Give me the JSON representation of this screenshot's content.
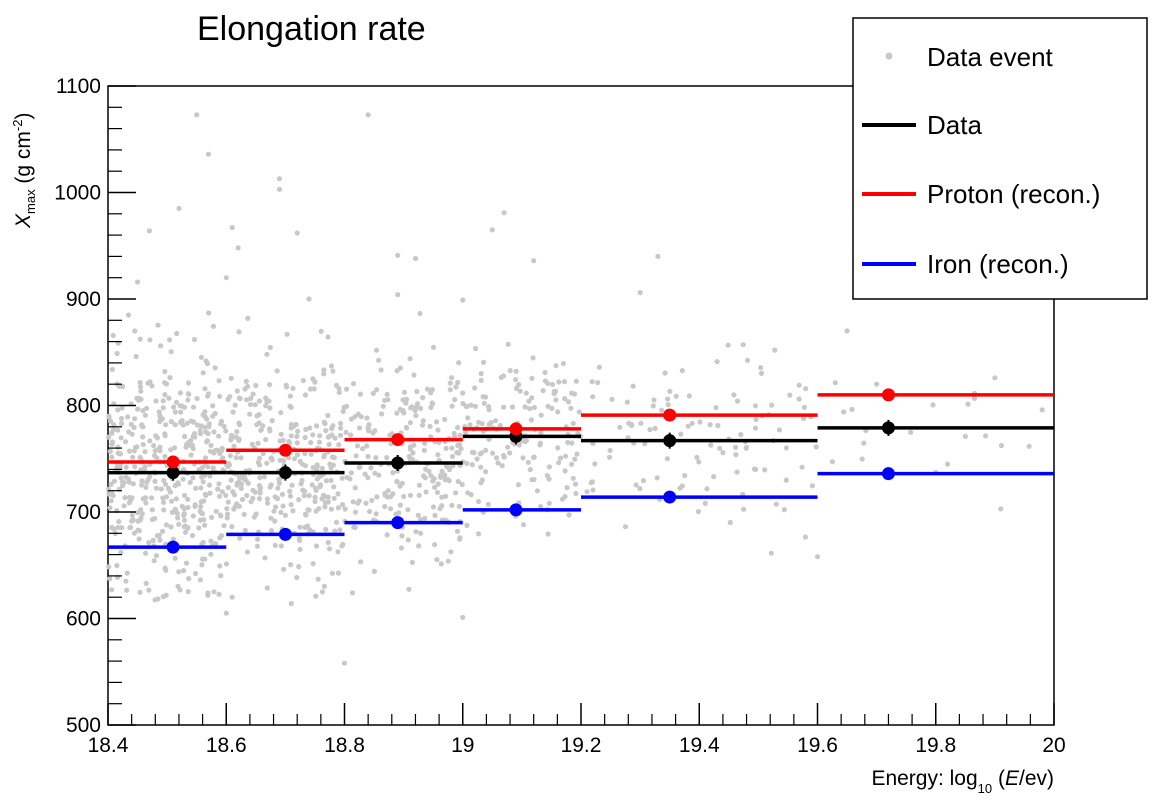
{
  "chart_data": {
    "type": "scatter",
    "title": "Elongation rate",
    "xlabel": {
      "prefix": "Energy: log",
      "sub": "10",
      "open": " (",
      "var": "E",
      "close": "/ev)"
    },
    "ylabel": {
      "var": "X",
      "sub": "max",
      "unit_prefix": " (g cm",
      "sup": "-2",
      "unit_suffix": ")"
    },
    "xlim": [
      18.4,
      20
    ],
    "ylim": [
      500,
      1100
    ],
    "x_ticks": [
      18.4,
      18.6,
      18.8,
      19,
      19.2,
      19.4,
      19.6,
      19.8,
      20
    ],
    "x_tick_labels": [
      "18.4",
      "18.6",
      "18.8",
      "19",
      "19.2",
      "19.4",
      "19.6",
      "19.8",
      "20"
    ],
    "y_ticks": [
      500,
      600,
      700,
      800,
      900,
      1000,
      1100
    ],
    "y_tick_labels": [
      "500",
      "600",
      "700",
      "800",
      "900",
      "1000",
      "1100"
    ],
    "bins": [
      {
        "x_min": 18.4,
        "x_max": 18.6,
        "x": 18.51,
        "data": 737,
        "proton": 747,
        "iron": 667
      },
      {
        "x_min": 18.6,
        "x_max": 18.8,
        "x": 18.7,
        "data": 737,
        "proton": 758,
        "iron": 679
      },
      {
        "x_min": 18.8,
        "x_max": 19.0,
        "x": 18.89,
        "data": 746,
        "proton": 768,
        "iron": 690
      },
      {
        "x_min": 19.0,
        "x_max": 19.2,
        "x": 19.09,
        "data": 771,
        "proton": 778,
        "iron": 702
      },
      {
        "x_min": 19.2,
        "x_max": 19.6,
        "x": 19.35,
        "data": 767,
        "proton": 791,
        "iron": 714
      },
      {
        "x_min": 19.6,
        "x_max": 20.0,
        "x": 19.72,
        "data": 779,
        "proton": 810,
        "iron": 736
      }
    ],
    "series": [
      {
        "name": "Data",
        "key": "data",
        "color": "#000000"
      },
      {
        "name": "Proton (recon.)",
        "key": "proton",
        "color": "#ff0000"
      },
      {
        "name": "Iron (recon.)",
        "key": "iron",
        "color": "#0000ff"
      }
    ],
    "scatter": {
      "name": "Data event",
      "color": "#c8c8c8",
      "outliers": [
        [
          18.55,
          1073
        ],
        [
          18.84,
          1073
        ],
        [
          18.57,
          1036
        ],
        [
          18.69,
          1013
        ],
        [
          18.69,
          1003
        ],
        [
          18.52,
          985
        ],
        [
          18.47,
          964
        ],
        [
          18.61,
          967
        ],
        [
          18.62,
          948
        ],
        [
          19.07,
          981
        ],
        [
          19.05,
          965
        ],
        [
          18.72,
          962
        ],
        [
          18.45,
          916
        ],
        [
          18.6,
          920
        ],
        [
          19.33,
          940
        ],
        [
          18.89,
          941
        ],
        [
          18.92,
          938
        ],
        [
          19.12,
          936
        ],
        [
          18.74,
          900
        ],
        [
          18.89,
          904
        ],
        [
          19.0,
          899
        ],
        [
          19.3,
          906
        ],
        [
          19.65,
          870
        ],
        [
          18.6,
          605
        ],
        [
          18.61,
          620
        ],
        [
          19.0,
          601
        ],
        [
          18.8,
          558
        ],
        [
          18.71,
          614
        ],
        [
          19.91,
          703
        ],
        [
          19.6,
          658
        ],
        [
          19.85,
          771
        ],
        [
          19.9,
          826
        ],
        [
          19.7,
          820
        ],
        [
          19.82,
          745
        ],
        [
          19.98,
          796
        ]
      ],
      "clusters": [
        {
          "x_min": 18.4,
          "x_max": 18.6,
          "y_mean": 738,
          "y_sd": 55,
          "n": 430
        },
        {
          "x_min": 18.6,
          "x_max": 18.8,
          "y_mean": 742,
          "y_sd": 50,
          "n": 330
        },
        {
          "x_min": 18.8,
          "x_max": 19.0,
          "y_mean": 748,
          "y_sd": 50,
          "n": 240
        },
        {
          "x_min": 19.0,
          "x_max": 19.2,
          "y_mean": 764,
          "y_sd": 42,
          "n": 160
        },
        {
          "x_min": 19.2,
          "x_max": 19.6,
          "y_mean": 766,
          "y_sd": 40,
          "n": 110
        },
        {
          "x_min": 19.6,
          "x_max": 20.0,
          "y_mean": 790,
          "y_sd": 25,
          "n": 16
        }
      ]
    },
    "legend": {
      "position": "top-right",
      "entries": [
        {
          "label": "Data event",
          "style": "marker",
          "color": "#c8c8c8"
        },
        {
          "label": "Data",
          "style": "line",
          "color": "#000000"
        },
        {
          "label": "Proton (recon.)",
          "style": "line",
          "color": "#ff0000"
        },
        {
          "label": "Iron (recon.)",
          "style": "line",
          "color": "#0000ff"
        }
      ]
    }
  }
}
